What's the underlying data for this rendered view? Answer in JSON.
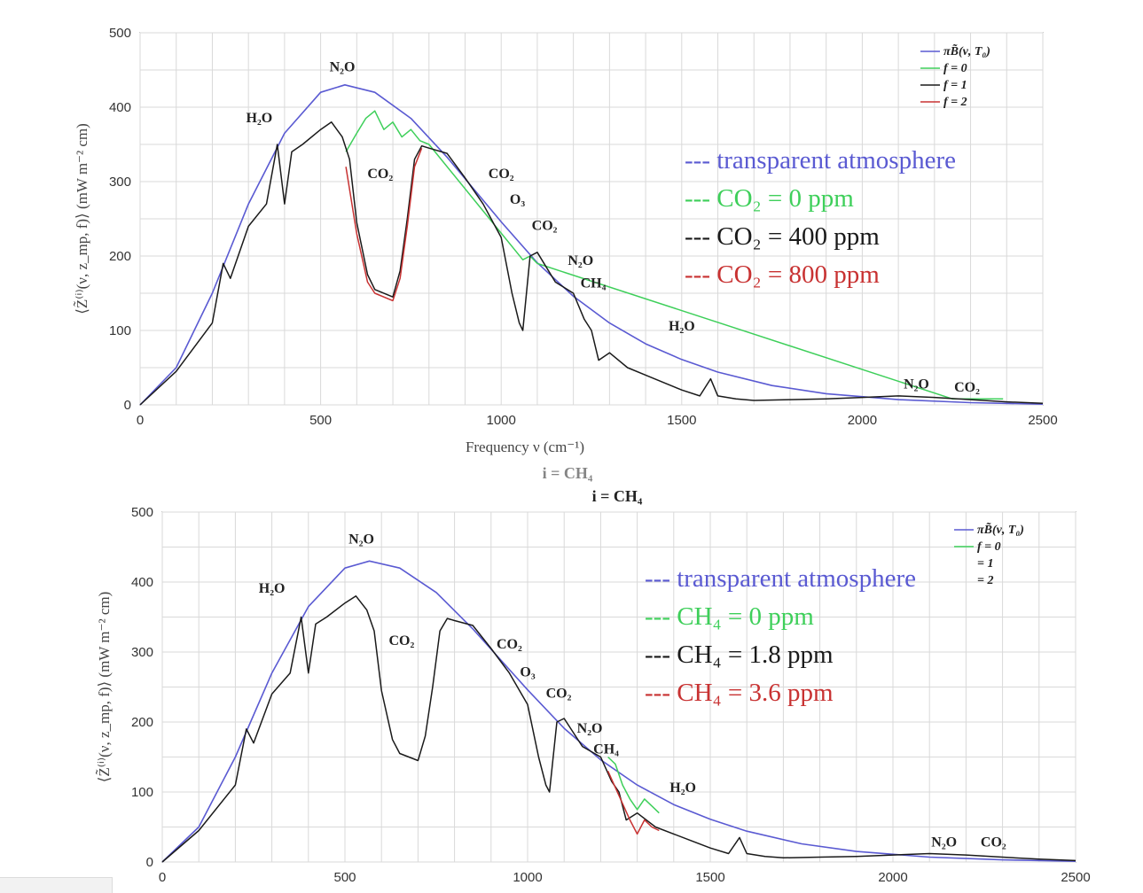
{
  "colors": {
    "blackbody": "#5a5ad2",
    "f0": "#3ecf5a",
    "f1": "#1a1a1a",
    "f2": "#c83232",
    "grid": "#d9d9d9",
    "axis": "#333333"
  },
  "chart_data": [
    {
      "type": "line",
      "title": "",
      "xlabel": "Frequency ν (cm⁻¹)",
      "ylabel": "⟨Z̃⁽ⁱ⁾(ν, z_mp, f)⟩ (mW m⁻² cm)",
      "xlim": [
        0,
        2500
      ],
      "ylim": [
        0,
        500
      ],
      "xticks": [
        0,
        500,
        1000,
        1500,
        2000,
        2500
      ],
      "yticks": [
        0,
        100,
        200,
        300,
        400,
        500
      ],
      "grid": true,
      "legend_placement": "top-right",
      "legend_entries": [
        "πB̃(ν, T₀)",
        "f = 0",
        "f = 1",
        "f = 2"
      ],
      "series": [
        {
          "name": "πB̃(ν, T₀)",
          "color_key": "blackbody",
          "x": [
            0,
            100,
            200,
            300,
            400,
            500,
            567,
            650,
            750,
            850,
            1000,
            1100,
            1200,
            1300,
            1400,
            1500,
            1600,
            1750,
            1900,
            2100,
            2300,
            2500
          ],
          "y": [
            0,
            50,
            150,
            270,
            365,
            420,
            430,
            420,
            385,
            333,
            246,
            191,
            146,
            110,
            82,
            61,
            44,
            26,
            15,
            7,
            3,
            1
          ]
        },
        {
          "name": "f = 0",
          "color_key": "f0",
          "x": [
            570,
            600,
            625,
            650,
            675,
            700,
            725,
            750,
            775,
            800,
            1060,
            1080,
            1100,
            2250,
            2300,
            2350,
            2390
          ],
          "y": [
            340,
            365,
            385,
            395,
            370,
            380,
            360,
            370,
            355,
            350,
            195,
            200,
            190,
            8,
            8,
            8,
            8
          ]
        },
        {
          "name": "f = 1",
          "color_key": "f1",
          "x": [
            0,
            100,
            200,
            230,
            250,
            300,
            350,
            380,
            400,
            420,
            450,
            500,
            530,
            560,
            580,
            600,
            630,
            650,
            700,
            720,
            740,
            760,
            780,
            800,
            850,
            900,
            950,
            1000,
            1030,
            1050,
            1060,
            1080,
            1100,
            1150,
            1200,
            1230,
            1250,
            1270,
            1300,
            1350,
            1400,
            1450,
            1500,
            1550,
            1580,
            1600,
            1650,
            1700,
            1800,
            1900,
            2000,
            2100,
            2200,
            2300,
            2400,
            2500
          ],
          "y": [
            0,
            45,
            110,
            190,
            170,
            240,
            270,
            350,
            270,
            340,
            350,
            370,
            380,
            360,
            330,
            245,
            175,
            155,
            145,
            180,
            250,
            330,
            348,
            345,
            338,
            305,
            270,
            225,
            150,
            110,
            100,
            200,
            205,
            165,
            150,
            115,
            100,
            60,
            70,
            50,
            40,
            30,
            20,
            12,
            35,
            12,
            8,
            6,
            7,
            8,
            10,
            12,
            10,
            7,
            4,
            2
          ]
        },
        {
          "name": "f = 2",
          "color_key": "f2",
          "x": [
            570,
            600,
            630,
            650,
            700,
            720,
            740,
            760,
            780
          ],
          "y": [
            320,
            230,
            165,
            150,
            140,
            170,
            240,
            320,
            345
          ]
        }
      ],
      "annotations": [
        {
          "text": "N₂O",
          "x": 560,
          "y": 448
        },
        {
          "text": "H₂O",
          "x": 330,
          "y": 380
        },
        {
          "text": "CO₂",
          "x": 665,
          "y": 305
        },
        {
          "text": "CO₂",
          "x": 1000,
          "y": 305
        },
        {
          "text": "O₃",
          "x": 1045,
          "y": 270
        },
        {
          "text": "CO₂",
          "x": 1120,
          "y": 235
        },
        {
          "text": "N₂O",
          "x": 1220,
          "y": 188
        },
        {
          "text": "CH₄",
          "x": 1255,
          "y": 158
        },
        {
          "text": "H₂O",
          "x": 1500,
          "y": 100
        },
        {
          "text": "N₂O",
          "x": 2150,
          "y": 22
        },
        {
          "text": "CO₂",
          "x": 2290,
          "y": 18
        }
      ],
      "big_legend": [
        {
          "text": "--- transparent atmosphere",
          "color_key": "blackbody"
        },
        {
          "text": "--- CO₂ = 0 ppm",
          "color_key": "f0"
        },
        {
          "text": "--- CO₂ = 400 ppm",
          "color_key": "f1"
        },
        {
          "text": "--- CO₂ = 800 ppm",
          "color_key": "f2"
        }
      ],
      "caption": "i = CH₄"
    },
    {
      "type": "line",
      "title": "i = CH₄",
      "xlabel": "",
      "ylabel": "⟨Z̃⁽ⁱ⁾(ν, z_mp, f)⟩ (mW m⁻² cm)",
      "xlim": [
        0,
        2500
      ],
      "ylim": [
        0,
        500
      ],
      "xticks": [
        0,
        500,
        1000,
        1500,
        2000,
        2500
      ],
      "yticks": [
        0,
        100,
        200,
        300,
        400,
        500
      ],
      "grid": true,
      "legend_placement": "top-right",
      "legend_entries": [
        "πB̃(ν, T₀)",
        "f = 0",
        "= 1",
        "= 2"
      ],
      "series": [
        {
          "name": "πB̃(ν, T₀)",
          "color_key": "blackbody",
          "x": [
            0,
            100,
            200,
            300,
            400,
            500,
            567,
            650,
            750,
            850,
            1000,
            1100,
            1200,
            1300,
            1400,
            1500,
            1600,
            1750,
            1900,
            2100,
            2300,
            2500
          ],
          "y": [
            0,
            50,
            150,
            270,
            365,
            420,
            430,
            420,
            385,
            333,
            246,
            191,
            146,
            110,
            82,
            61,
            44,
            26,
            15,
            7,
            3,
            1
          ]
        },
        {
          "name": "f = 0",
          "color_key": "f0",
          "x": [
            1220,
            1240,
            1260,
            1280,
            1300,
            1320,
            1340,
            1360
          ],
          "y": [
            150,
            140,
            110,
            90,
            75,
            90,
            80,
            70
          ]
        },
        {
          "name": "f = 1",
          "color_key": "f1",
          "x": [
            0,
            100,
            200,
            230,
            250,
            300,
            350,
            380,
            400,
            420,
            450,
            500,
            530,
            560,
            580,
            600,
            630,
            650,
            700,
            720,
            740,
            760,
            780,
            800,
            850,
            900,
            950,
            1000,
            1030,
            1050,
            1060,
            1080,
            1100,
            1150,
            1200,
            1230,
            1250,
            1270,
            1300,
            1350,
            1400,
            1450,
            1500,
            1550,
            1580,
            1600,
            1650,
            1700,
            1800,
            1900,
            2000,
            2100,
            2200,
            2300,
            2400,
            2500
          ],
          "y": [
            0,
            45,
            110,
            190,
            170,
            240,
            270,
            350,
            270,
            340,
            350,
            370,
            380,
            360,
            330,
            245,
            175,
            155,
            145,
            180,
            250,
            330,
            348,
            345,
            338,
            305,
            270,
            225,
            150,
            110,
            100,
            200,
            205,
            165,
            150,
            115,
            100,
            60,
            70,
            50,
            40,
            30,
            20,
            12,
            35,
            12,
            8,
            6,
            7,
            8,
            10,
            12,
            10,
            7,
            4,
            2
          ]
        },
        {
          "name": "f = 2",
          "color_key": "f2",
          "x": [
            1220,
            1250,
            1280,
            1300,
            1320,
            1340,
            1360
          ],
          "y": [
            130,
            95,
            60,
            40,
            60,
            50,
            45
          ]
        }
      ],
      "annotations": [
        {
          "text": "N₂O",
          "x": 545,
          "y": 455
        },
        {
          "text": "H₂O",
          "x": 300,
          "y": 385
        },
        {
          "text": "CO₂",
          "x": 655,
          "y": 310
        },
        {
          "text": "CO₂",
          "x": 950,
          "y": 305
        },
        {
          "text": "O₃",
          "x": 1000,
          "y": 265
        },
        {
          "text": "CO₂",
          "x": 1085,
          "y": 235
        },
        {
          "text": "N₂O",
          "x": 1170,
          "y": 185
        },
        {
          "text": "CH₄",
          "x": 1215,
          "y": 155
        },
        {
          "text": "H₂O",
          "x": 1425,
          "y": 100
        },
        {
          "text": "N₂O",
          "x": 2140,
          "y": 22
        },
        {
          "text": "CO₂",
          "x": 2275,
          "y": 22
        }
      ],
      "big_legend": [
        {
          "text": "--- transparent atmosphere",
          "color_key": "blackbody"
        },
        {
          "text": "--- CH₄ = 0 ppm",
          "color_key": "f0"
        },
        {
          "text": "--- CH₄ = 1.8 ppm",
          "color_key": "f1"
        },
        {
          "text": "--- CH₄ = 3.6 ppm",
          "color_key": "f2"
        }
      ]
    }
  ]
}
